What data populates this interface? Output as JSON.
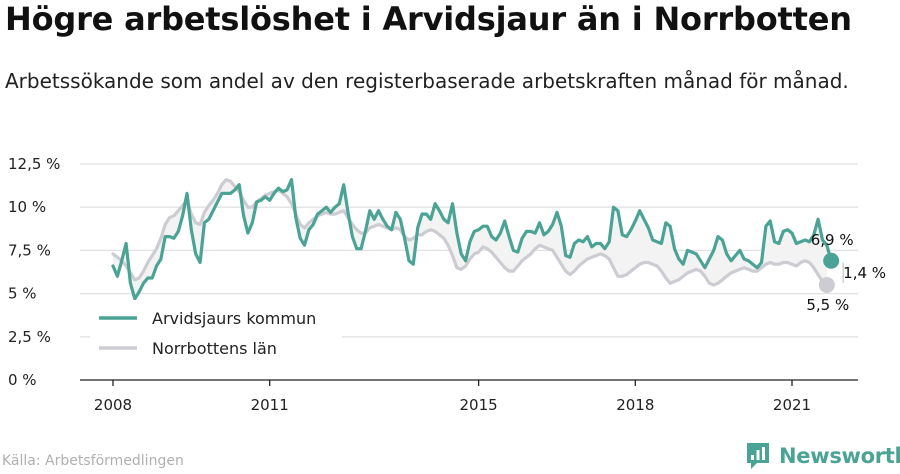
{
  "title": "Högre arbetslöshet i Arvidsjaur än i Norrbotten",
  "subtitle": "Arbetssökande som andel av den registerbaserade arbetskraften månad för månad.",
  "source": "Källa: Arbetsförmedlingen",
  "brand": "Newsworthy",
  "colors": {
    "arvidsjaur": "#4aa394",
    "norrbotten": "#cdccd2",
    "diff_fill": "#f3f3f3",
    "grid": "#e2e2e2",
    "axis": "#222222"
  },
  "chart_data": {
    "type": "line",
    "x_unit": "month",
    "y_unit": "%",
    "ylim": [
      0,
      12.5
    ],
    "grid": true,
    "y_ticks": [
      {
        "value": 0,
        "label": "0 %"
      },
      {
        "value": 2.5,
        "label": "2,5 %"
      },
      {
        "value": 5,
        "label": "5 %"
      },
      {
        "value": 7.5,
        "label": "7,5 %"
      },
      {
        "value": 10,
        "label": "10 %"
      },
      {
        "value": 12.5,
        "label": "12,5 %"
      }
    ],
    "x_ticks": [
      "2008",
      "2011",
      "2015",
      "2018",
      "2021"
    ],
    "legend_position": "bottom-left",
    "start": "2008-01",
    "end": "2021-11",
    "series": [
      {
        "name": "Arvidsjaurs kommun",
        "end_label": "6,9 %",
        "values": [
          6.6,
          6.0,
          6.9,
          7.9,
          5.6,
          4.7,
          5.1,
          5.6,
          5.9,
          5.9,
          6.6,
          7.0,
          8.3,
          8.3,
          8.2,
          8.6,
          9.5,
          10.8,
          8.7,
          7.3,
          6.8,
          9.1,
          9.3,
          9.8,
          10.3,
          10.8,
          10.8,
          10.8,
          11.0,
          11.3,
          9.5,
          8.5,
          9.1,
          10.3,
          10.4,
          10.6,
          10.4,
          10.8,
          11.1,
          10.9,
          11.0,
          11.6,
          9.4,
          8.2,
          7.8,
          8.7,
          9.0,
          9.6,
          9.8,
          10.0,
          9.7,
          10.0,
          10.2,
          11.3,
          9.7,
          8.3,
          7.6,
          7.6,
          8.6,
          9.8,
          9.3,
          9.8,
          9.3,
          8.9,
          8.7,
          9.7,
          9.3,
          8.2,
          6.9,
          6.7,
          8.8,
          9.6,
          9.6,
          9.3,
          10.2,
          9.8,
          9.3,
          9.1,
          10.2,
          8.5,
          7.3,
          6.9,
          8.0,
          8.6,
          8.7,
          8.9,
          8.9,
          8.3,
          8.1,
          8.5,
          9.2,
          8.3,
          7.5,
          7.4,
          8.2,
          8.6,
          8.6,
          8.5,
          9.1,
          8.4,
          8.6,
          9.0,
          9.7,
          8.9,
          7.2,
          7.1,
          7.9,
          8.1,
          8.0,
          8.3,
          7.7,
          7.9,
          7.9,
          7.6,
          8.0,
          10.0,
          9.8,
          8.4,
          8.3,
          8.7,
          9.2,
          9.8,
          9.3,
          8.8,
          8.1,
          8.0,
          7.9,
          9.1,
          8.9,
          7.6,
          7.0,
          6.7,
          7.5,
          7.4,
          7.3,
          6.9,
          6.5,
          7.0,
          7.5,
          8.3,
          8.1,
          7.3,
          6.9,
          7.2,
          7.5,
          7.0,
          6.9,
          6.7,
          6.5,
          6.8,
          8.9,
          9.2,
          8.0,
          7.9,
          8.6,
          8.7,
          8.5,
          7.9,
          8.0,
          8.1,
          8.0,
          8.4,
          9.3,
          8.1,
          7.8,
          6.9
        ]
      },
      {
        "name": "Norrbottens län",
        "end_label": "5,5 %",
        "values": [
          7.3,
          7.1,
          6.9,
          6.6,
          6.2,
          5.8,
          5.9,
          6.3,
          6.8,
          7.2,
          7.6,
          8.2,
          9.0,
          9.4,
          9.5,
          9.8,
          10.1,
          10.4,
          9.6,
          9.1,
          9.0,
          9.7,
          10.1,
          10.4,
          10.8,
          11.3,
          11.6,
          11.5,
          11.2,
          10.9,
          10.4,
          10.0,
          10.0,
          10.3,
          10.5,
          10.7,
          10.8,
          10.9,
          11.0,
          10.8,
          10.6,
          10.2,
          9.6,
          9.0,
          8.8,
          9.1,
          9.3,
          9.5,
          9.6,
          9.7,
          9.6,
          9.6,
          9.7,
          9.8,
          9.4,
          9.0,
          8.7,
          8.5,
          8.5,
          8.8,
          8.9,
          9.0,
          8.9,
          8.8,
          8.7,
          8.8,
          8.7,
          8.3,
          8.1,
          8.2,
          8.4,
          8.4,
          8.6,
          8.7,
          8.6,
          8.4,
          8.2,
          7.8,
          7.2,
          6.5,
          6.4,
          6.6,
          7.0,
          7.3,
          7.4,
          7.7,
          7.6,
          7.4,
          7.1,
          6.8,
          6.5,
          6.3,
          6.3,
          6.6,
          6.9,
          7.1,
          7.3,
          7.6,
          7.8,
          7.7,
          7.6,
          7.5,
          7.1,
          6.7,
          6.3,
          6.1,
          6.3,
          6.6,
          6.8,
          7.0,
          7.1,
          7.2,
          7.3,
          7.2,
          7.0,
          6.5,
          6.0,
          6.0,
          6.1,
          6.3,
          6.5,
          6.7,
          6.8,
          6.8,
          6.7,
          6.6,
          6.3,
          5.9,
          5.6,
          5.7,
          5.8,
          6.0,
          6.2,
          6.3,
          6.4,
          6.3,
          6.0,
          5.6,
          5.5,
          5.6,
          5.8,
          6.0,
          6.2,
          6.3,
          6.4,
          6.5,
          6.4,
          6.3,
          6.3,
          6.5,
          6.7,
          6.8,
          6.7,
          6.7,
          6.8,
          6.8,
          6.7,
          6.6,
          6.8,
          6.9,
          6.8,
          6.5,
          6.1,
          5.7,
          5.5
        ]
      }
    ],
    "difference_label": "1,4 %"
  }
}
